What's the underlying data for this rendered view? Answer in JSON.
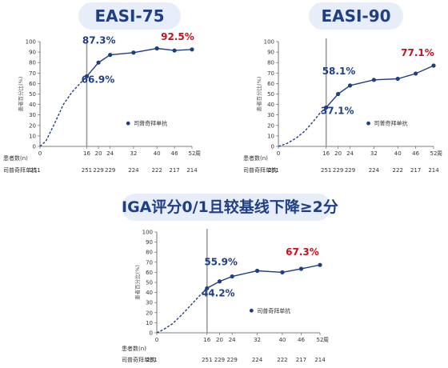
{
  "chart_data": [
    {
      "type": "line",
      "title": "EASI-75",
      "ylabel": "患者百分比(%)",
      "x_unit_label": "周",
      "ylim": [
        0,
        100
      ],
      "yticks": [
        0,
        10,
        20,
        30,
        40,
        50,
        60,
        70,
        80,
        90,
        100
      ],
      "xticks": [
        0,
        16,
        20,
        24,
        32,
        40,
        46,
        52
      ],
      "reference_line_x": 16,
      "series": [
        {
          "name": "司普奇拜单抗",
          "color": "#1f3f82",
          "x": [
            16,
            20,
            24,
            32,
            40,
            46,
            52
          ],
          "values": [
            66.9,
            80,
            87.3,
            89.5,
            93.5,
            91.5,
            92.5
          ],
          "dashed_lead_in": {
            "x": [
              0,
              2,
              5,
              8,
              11,
              14,
              16
            ],
            "values": [
              0,
              5,
              22,
              40,
              52,
              61,
              66.9
            ]
          }
        }
      ],
      "annotations": [
        {
          "text": "66.9%",
          "x": 16,
          "color": "#1f3f82"
        },
        {
          "text": "87.3%",
          "x": 24,
          "color": "#1f3f82"
        },
        {
          "text": "92.5%",
          "x": 52,
          "color": "#c1121f"
        }
      ],
      "patients_label": "患者数(n)",
      "patients_row": {
        "name": "司普奇拜单抗",
        "x": [
          0,
          16,
          20,
          24,
          32,
          40,
          46,
          52
        ],
        "counts": [
          251,
          251,
          229,
          229,
          224,
          222,
          217,
          214
        ]
      }
    },
    {
      "type": "line",
      "title": "EASI-90",
      "ylabel": "患者百分比(%)",
      "x_unit_label": "周",
      "ylim": [
        0,
        100
      ],
      "yticks": [
        0,
        10,
        20,
        30,
        40,
        50,
        60,
        70,
        80,
        90,
        100
      ],
      "xticks": [
        0,
        16,
        20,
        24,
        32,
        40,
        46,
        52
      ],
      "reference_line_x": 16,
      "series": [
        {
          "name": "司普奇拜单抗",
          "color": "#1f3f82",
          "x": [
            16,
            20,
            24,
            32,
            40,
            46,
            52
          ],
          "values": [
            37.1,
            50,
            58.1,
            63.5,
            64.5,
            69.5,
            77.1
          ],
          "dashed_lead_in": {
            "x": [
              0,
              3,
              6,
              9,
              12,
              14,
              16
            ],
            "values": [
              0,
              3,
              8,
              15,
              25,
              32,
              37.1
            ]
          }
        }
      ],
      "annotations": [
        {
          "text": "37.1%",
          "x": 16,
          "color": "#1f3f82"
        },
        {
          "text": "58.1%",
          "x": 24,
          "color": "#1f3f82"
        },
        {
          "text": "77.1%",
          "x": 52,
          "color": "#c1121f"
        }
      ],
      "patients_label": "患者数(n)",
      "patients_row": {
        "name": "司普奇拜单抗",
        "x": [
          0,
          16,
          20,
          24,
          32,
          40,
          46,
          52
        ],
        "counts": [
          251,
          251,
          229,
          229,
          224,
          222,
          217,
          214
        ]
      }
    },
    {
      "type": "line",
      "title": "IGA评分0/1且较基线下降≥2分",
      "ylabel": "患者百分比(%)",
      "x_unit_label": "周",
      "ylim": [
        0,
        100
      ],
      "yticks": [
        0,
        10,
        20,
        30,
        40,
        50,
        60,
        70,
        80,
        90,
        100
      ],
      "xticks": [
        0,
        16,
        20,
        24,
        32,
        40,
        46,
        52
      ],
      "reference_line_x": 16,
      "series": [
        {
          "name": "司普奇拜单抗",
          "color": "#1f3f82",
          "x": [
            16,
            20,
            24,
            32,
            40,
            46,
            52
          ],
          "values": [
            44.2,
            51,
            55.9,
            61.5,
            60,
            63.5,
            67.3
          ],
          "dashed_lead_in": {
            "x": [
              0,
              2,
              5,
              8,
              11,
              14,
              16
            ],
            "values": [
              0,
              3,
              9,
              18,
              28,
              38,
              44.2
            ]
          }
        }
      ],
      "annotations": [
        {
          "text": "44.2%",
          "x": 16,
          "color": "#1f3f82"
        },
        {
          "text": "55.9%",
          "x": 24,
          "color": "#1f3f82"
        },
        {
          "text": "67.3%",
          "x": 52,
          "color": "#c1121f"
        }
      ],
      "patients_label": "患者数(n)",
      "patients_row": {
        "name": "司普奇拜单抗",
        "x": [
          0,
          16,
          20,
          24,
          32,
          40,
          46,
          52
        ],
        "counts": [
          251,
          251,
          229,
          229,
          224,
          222,
          217,
          214
        ]
      }
    }
  ]
}
